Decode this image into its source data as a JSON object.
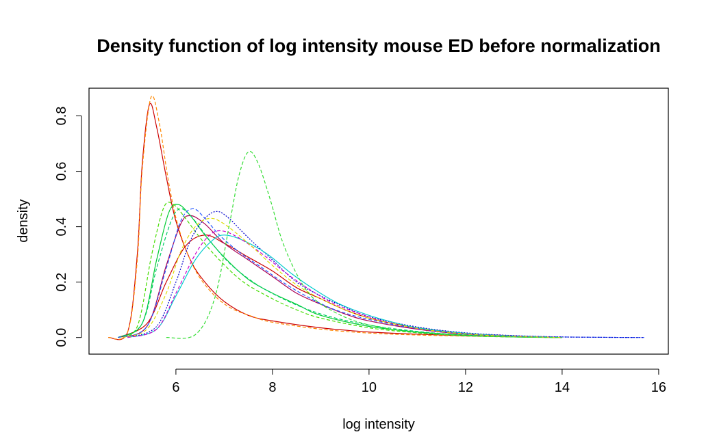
{
  "chart_data": {
    "type": "line",
    "title": "Density function of log intensity mouse ED before normalization",
    "xlabel": "log intensity",
    "ylabel": "density",
    "xlim": [
      4.2,
      16.2
    ],
    "ylim": [
      -0.06,
      0.9
    ],
    "x_ticks": [
      {
        "value": 6,
        "label": "6"
      },
      {
        "value": 8,
        "label": "8"
      },
      {
        "value": 10,
        "label": "10"
      },
      {
        "value": 12,
        "label": "12"
      },
      {
        "value": 14,
        "label": "14"
      },
      {
        "value": 16,
        "label": "16"
      }
    ],
    "y_ticks": [
      {
        "value": 0.0,
        "label": "0.0"
      },
      {
        "value": 0.2,
        "label": "0.2"
      },
      {
        "value": 0.4,
        "label": "0.4"
      },
      {
        "value": 0.6,
        "label": "0.6"
      },
      {
        "value": 0.8,
        "label": "0.8"
      }
    ],
    "grid": false,
    "legend": "none",
    "series": [
      {
        "color": "#cc0000",
        "dash": "solid",
        "x": [
          4.6,
          5.0,
          5.2,
          5.3,
          5.45,
          5.6,
          5.8,
          6.0,
          6.3,
          6.6,
          7.0,
          7.5,
          8.0,
          9.0,
          10.0,
          11.0,
          12.0,
          13.0,
          14.0
        ],
        "y": [
          0.0,
          0.02,
          0.3,
          0.62,
          0.84,
          0.76,
          0.58,
          0.42,
          0.28,
          0.2,
          0.13,
          0.08,
          0.06,
          0.035,
          0.02,
          0.012,
          0.006,
          0.003,
          0.0
        ]
      },
      {
        "color": "#ff8800",
        "dash": "dashed",
        "x": [
          4.6,
          5.0,
          5.2,
          5.3,
          5.48,
          5.65,
          5.85,
          6.05,
          6.35,
          6.7,
          7.1,
          7.6,
          8.0,
          9.0,
          10.0,
          11.0,
          12.0,
          13.0,
          14.0
        ],
        "y": [
          0.0,
          0.02,
          0.28,
          0.6,
          0.865,
          0.78,
          0.56,
          0.4,
          0.26,
          0.17,
          0.11,
          0.075,
          0.055,
          0.03,
          0.016,
          0.009,
          0.005,
          0.002,
          0.0
        ]
      },
      {
        "color": "#cc0000",
        "dash": "solid",
        "x": [
          4.8,
          5.4,
          5.8,
          6.2,
          6.6,
          7.0,
          7.5,
          8.0,
          8.5,
          9.0,
          9.5,
          10.0,
          10.5,
          11.0,
          12.0,
          13.0,
          14.0
        ],
        "y": [
          0.0,
          0.05,
          0.2,
          0.33,
          0.37,
          0.34,
          0.29,
          0.24,
          0.18,
          0.14,
          0.1,
          0.07,
          0.05,
          0.035,
          0.015,
          0.006,
          0.0
        ]
      },
      {
        "color": "#aa0055",
        "dash": "solid",
        "x": [
          4.8,
          5.4,
          5.8,
          6.1,
          6.3,
          6.6,
          7.0,
          7.5,
          8.0,
          8.5,
          9.0,
          9.5,
          10.0,
          11.0,
          12.0,
          13.0,
          14.0
        ],
        "y": [
          0.0,
          0.04,
          0.26,
          0.41,
          0.44,
          0.41,
          0.34,
          0.28,
          0.22,
          0.16,
          0.12,
          0.085,
          0.06,
          0.03,
          0.012,
          0.004,
          0.0
        ]
      },
      {
        "color": "#00cc33",
        "dash": "solid",
        "x": [
          4.8,
          5.3,
          5.6,
          5.85,
          6.05,
          6.3,
          6.6,
          7.0,
          7.5,
          8.0,
          8.5,
          9.0,
          10.0,
          11.0,
          12.0,
          13.0,
          14.0
        ],
        "y": [
          0.0,
          0.05,
          0.28,
          0.45,
          0.48,
          0.44,
          0.37,
          0.29,
          0.21,
          0.16,
          0.12,
          0.08,
          0.04,
          0.02,
          0.008,
          0.002,
          0.0
        ]
      },
      {
        "color": "#44dd00",
        "dash": "dashed",
        "x": [
          4.8,
          5.2,
          5.5,
          5.75,
          5.95,
          6.2,
          6.5,
          6.9,
          7.4,
          8.0,
          8.5,
          9.0,
          10.0,
          11.0,
          12.0,
          13.0,
          14.0
        ],
        "y": [
          0.0,
          0.04,
          0.3,
          0.47,
          0.48,
          0.43,
          0.36,
          0.28,
          0.2,
          0.14,
          0.1,
          0.07,
          0.035,
          0.017,
          0.007,
          0.002,
          0.0
        ]
      },
      {
        "color": "#00cc66",
        "dash": "dashed",
        "x": [
          4.8,
          5.3,
          5.6,
          5.9,
          6.1,
          6.35,
          6.7,
          7.1,
          7.6,
          8.1,
          8.6,
          9.2,
          10.0,
          11.0,
          12.0,
          13.0,
          14.0
        ],
        "y": [
          0.0,
          0.05,
          0.25,
          0.42,
          0.465,
          0.43,
          0.35,
          0.27,
          0.2,
          0.15,
          0.11,
          0.075,
          0.045,
          0.022,
          0.009,
          0.003,
          0.0
        ]
      },
      {
        "color": "#2255ff",
        "dash": "dashed",
        "x": [
          4.8,
          5.4,
          5.8,
          6.1,
          6.35,
          6.6,
          6.9,
          7.3,
          7.8,
          8.3,
          8.8,
          9.3,
          10.0,
          11.0,
          12.0,
          13.0,
          14.0,
          15.0,
          15.7
        ],
        "y": [
          0.0,
          0.04,
          0.25,
          0.42,
          0.465,
          0.43,
          0.37,
          0.31,
          0.25,
          0.19,
          0.14,
          0.1,
          0.065,
          0.032,
          0.014,
          0.006,
          0.002,
          0.0005,
          0.0
        ]
      },
      {
        "color": "#0000cc",
        "dash": "dotted",
        "x": [
          5.0,
          5.6,
          6.0,
          6.3,
          6.6,
          6.85,
          7.1,
          7.5,
          8.0,
          8.5,
          9.0,
          9.5,
          10.0,
          11.0,
          12.0,
          13.0,
          14.0,
          15.0,
          15.7
        ],
        "y": [
          0.0,
          0.04,
          0.2,
          0.35,
          0.43,
          0.455,
          0.43,
          0.36,
          0.28,
          0.2,
          0.15,
          0.11,
          0.075,
          0.038,
          0.017,
          0.007,
          0.002,
          0.0005,
          0.0
        ]
      },
      {
        "color": "#00cccc",
        "dash": "solid",
        "x": [
          5.0,
          5.6,
          6.0,
          6.4,
          6.75,
          7.0,
          7.4,
          7.9,
          8.4,
          8.9,
          9.4,
          10.0,
          10.5,
          11.0,
          12.0,
          13.0,
          14.0
        ],
        "y": [
          0.0,
          0.03,
          0.15,
          0.28,
          0.35,
          0.37,
          0.35,
          0.3,
          0.23,
          0.17,
          0.12,
          0.08,
          0.055,
          0.035,
          0.015,
          0.005,
          0.0
        ]
      },
      {
        "color": "#cc00cc",
        "dash": "dashed",
        "x": [
          5.0,
          5.6,
          6.0,
          6.4,
          6.7,
          6.95,
          7.3,
          7.8,
          8.3,
          8.8,
          9.3,
          10.0,
          10.5,
          11.0,
          12.0,
          13.0,
          14.0
        ],
        "y": [
          0.0,
          0.03,
          0.16,
          0.3,
          0.37,
          0.385,
          0.36,
          0.3,
          0.23,
          0.17,
          0.12,
          0.075,
          0.05,
          0.032,
          0.013,
          0.004,
          0.0
        ]
      },
      {
        "color": "#dddd00",
        "dash": "dashed",
        "x": [
          4.9,
          5.4,
          5.8,
          6.1,
          6.4,
          6.7,
          7.0,
          7.5,
          8.0,
          8.5,
          9.0,
          9.5,
          10.0,
          11.0,
          12.0,
          13.0,
          14.0
        ],
        "y": [
          0.0,
          0.03,
          0.16,
          0.31,
          0.4,
          0.43,
          0.41,
          0.34,
          0.26,
          0.19,
          0.14,
          0.1,
          0.07,
          0.033,
          0.013,
          0.004,
          0.0
        ]
      },
      {
        "color": "#33dd33",
        "dash": "dashed",
        "x": [
          5.8,
          6.4,
          6.8,
          7.1,
          7.3,
          7.5,
          7.7,
          7.95,
          8.2,
          8.5,
          8.8,
          9.2,
          9.7,
          10.3,
          11.0,
          12.0,
          13.0,
          14.0
        ],
        "y": [
          0.0,
          0.01,
          0.14,
          0.4,
          0.58,
          0.67,
          0.63,
          0.5,
          0.35,
          0.23,
          0.15,
          0.1,
          0.06,
          0.035,
          0.017,
          0.006,
          0.002,
          0.0
        ]
      }
    ]
  }
}
